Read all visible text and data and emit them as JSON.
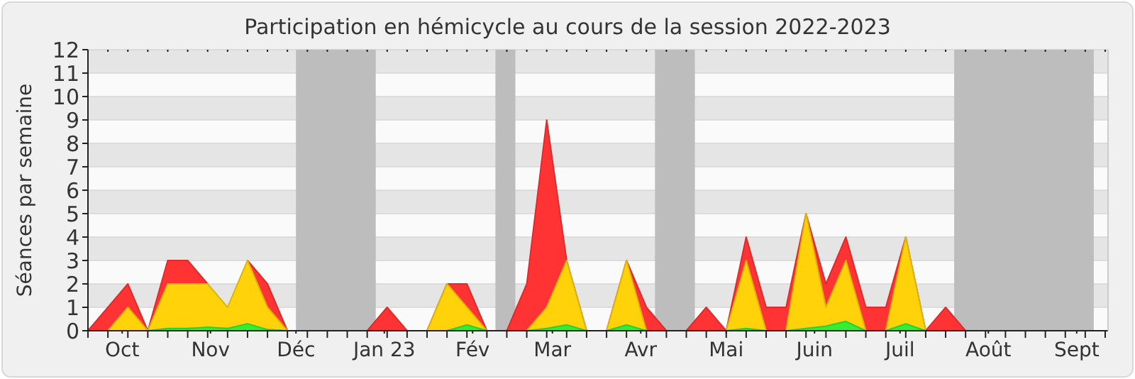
{
  "chart_data": {
    "type": "area",
    "title": "Participation en hémicycle au cours de la session 2022-2023",
    "ylabel": "Séances par semaine",
    "x": [
      "2022-09-19",
      "2022-09-26",
      "2022-10-03",
      "2022-10-10",
      "2022-10-17",
      "2022-10-24",
      "2022-10-31",
      "2022-11-07",
      "2022-11-14",
      "2022-11-21",
      "2022-11-28",
      "2022-12-05",
      "2022-12-12",
      "2022-12-19",
      "2022-12-26",
      "2023-01-02",
      "2023-01-09",
      "2023-01-16",
      "2023-01-23",
      "2023-01-30",
      "2023-02-06",
      "2023-02-13",
      "2023-02-20",
      "2023-02-27",
      "2023-03-06",
      "2023-03-13",
      "2023-03-20",
      "2023-03-27",
      "2023-04-03",
      "2023-04-10",
      "2023-04-17",
      "2023-04-24",
      "2023-05-01",
      "2023-05-08",
      "2023-05-15",
      "2023-05-22",
      "2023-05-29",
      "2023-06-05",
      "2023-06-12",
      "2023-06-19",
      "2023-06-26",
      "2023-07-03",
      "2023-07-10",
      "2023-07-17",
      "2023-07-24",
      "2023-07-31",
      "2023-08-07",
      "2023-08-14",
      "2023-08-21",
      "2023-08-28",
      "2023-09-04",
      "2023-09-11"
    ],
    "xlim": [
      "2022-09-19",
      "2023-09-12"
    ],
    "xticks": [
      {
        "value": "2022-10-01",
        "label": "Oct"
      },
      {
        "value": "2022-11-01",
        "label": "Nov"
      },
      {
        "value": "2022-12-01",
        "label": "Déc"
      },
      {
        "value": "2023-01-01",
        "label": "Jan 23"
      },
      {
        "value": "2023-02-01",
        "label": "Fév"
      },
      {
        "value": "2023-03-01",
        "label": "Mar"
      },
      {
        "value": "2023-04-01",
        "label": "Avr"
      },
      {
        "value": "2023-05-01",
        "label": "Mai"
      },
      {
        "value": "2023-06-01",
        "label": "Juin"
      },
      {
        "value": "2023-07-01",
        "label": "Juil"
      },
      {
        "value": "2023-08-01",
        "label": "Août"
      },
      {
        "value": "2023-09-01",
        "label": "Sept"
      }
    ],
    "ylim": [
      0,
      12
    ],
    "yticks": [
      0,
      1,
      2,
      3,
      4,
      5,
      6,
      7,
      8,
      9,
      10,
      11,
      12
    ],
    "grid": "y",
    "bands": [
      {
        "axis": "x",
        "from": "2022-12-01",
        "to": "2022-12-29",
        "color": "#bdbdbd"
      },
      {
        "axis": "x",
        "from": "2023-02-09",
        "to": "2023-02-16",
        "color": "#bdbdbd"
      },
      {
        "axis": "x",
        "from": "2023-04-06",
        "to": "2023-04-20",
        "color": "#bdbdbd"
      },
      {
        "axis": "x",
        "from": "2023-07-20",
        "to": "2023-09-07",
        "color": "#bdbdbd"
      }
    ],
    "series": [
      {
        "color": "#ff3333",
        "values": [
          0,
          1,
          2,
          0,
          3,
          3,
          2,
          null,
          3,
          2,
          0,
          0,
          0,
          0,
          0,
          1,
          0,
          0,
          2,
          2,
          0,
          0,
          2,
          9,
          3,
          0,
          0,
          3,
          1,
          0,
          0,
          1,
          0,
          4,
          1,
          1,
          5,
          2,
          4,
          1,
          1,
          4,
          0,
          1,
          0,
          0,
          0,
          0,
          0,
          0,
          0,
          0
        ]
      },
      {
        "color": "#ffd20a",
        "values": [
          0,
          0,
          1,
          0,
          2,
          2,
          2,
          1,
          3,
          1,
          0,
          0,
          0,
          0,
          0,
          0,
          0,
          0,
          2,
          1,
          0,
          0,
          0,
          1,
          3,
          0,
          0,
          3,
          0,
          0,
          0,
          0,
          0,
          3,
          0,
          0,
          5,
          1,
          3,
          0,
          0,
          4,
          0,
          0,
          0,
          0,
          0,
          0,
          0,
          0,
          0,
          0
        ]
      },
      {
        "color": "#33ee33",
        "values": [
          0,
          0,
          0,
          0,
          0.1,
          0.1,
          0.15,
          0.1,
          0.3,
          0.05,
          0,
          0,
          0,
          0,
          0,
          0,
          0,
          0,
          0,
          0.25,
          0,
          0,
          0,
          0.1,
          0.25,
          0,
          0,
          0.25,
          0,
          0,
          0,
          0,
          0,
          0.1,
          0,
          0,
          0.1,
          0.2,
          0.4,
          0,
          0,
          0.3,
          0,
          0,
          0,
          0,
          0,
          0,
          0,
          0,
          0,
          0
        ]
      }
    ]
  }
}
